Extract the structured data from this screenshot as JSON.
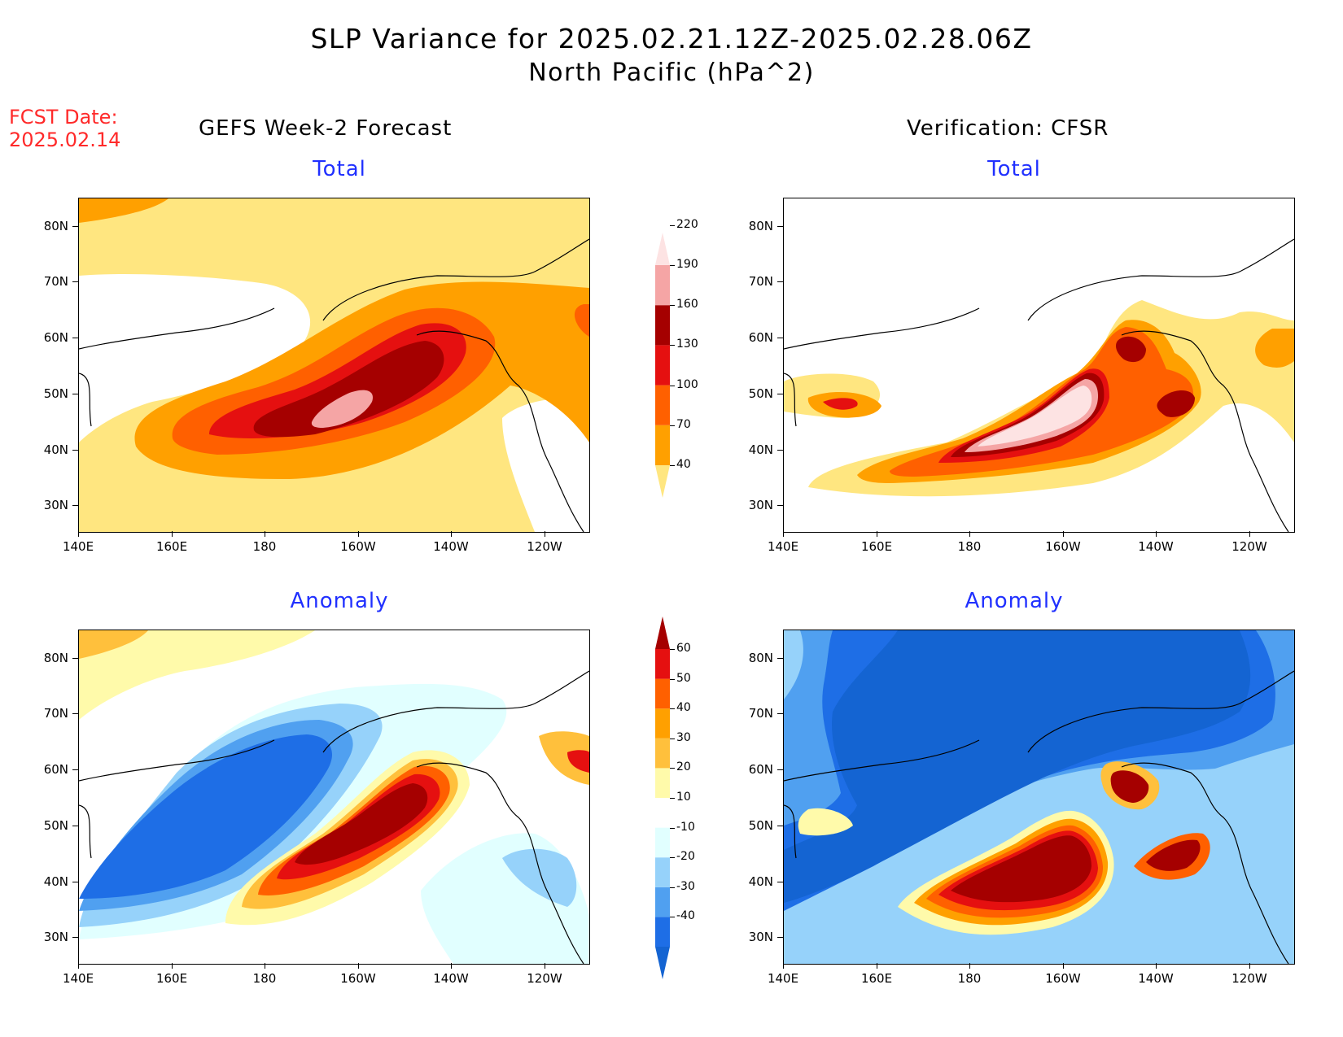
{
  "title": {
    "line1": "SLP Variance for 2025.02.21.12Z-2025.02.28.06Z",
    "line2": "North Pacific (hPa^2)"
  },
  "fcst_date": {
    "label": "FCST Date:",
    "value": "2025.02.14"
  },
  "columns": {
    "left": "GEFS Week-2 Forecast",
    "right": "Verification: CFSR"
  },
  "panel_titles": {
    "top": "Total",
    "bottom": "Anomaly"
  },
  "axes": {
    "lat_labels": [
      "80N",
      "70N",
      "60N",
      "50N",
      "40N",
      "30N"
    ],
    "lon_labels": [
      "140E",
      "160E",
      "180",
      "160W",
      "140W",
      "120W"
    ]
  },
  "colorbars": {
    "total": {
      "levels": [
        "40",
        "70",
        "100",
        "130",
        "160",
        "190",
        "220"
      ],
      "colors": [
        "#ffe680",
        "#ffa000",
        "#ff6000",
        "#e51010",
        "#a50000",
        "#f5a5a5",
        "#fde3e3"
      ]
    },
    "anomaly": {
      "levels": [
        "-40",
        "-30",
        "-20",
        "-10",
        "10",
        "20",
        "30",
        "40",
        "50",
        "60"
      ],
      "colors": [
        "#1464d2",
        "#1e6ee6",
        "#50a0f0",
        "#96d2fa",
        "#e1ffff",
        "#ffffff",
        "#fffaaa",
        "#ffc03c",
        "#ffa000",
        "#ff6000",
        "#e51010",
        "#a50000"
      ]
    }
  },
  "map_colors": {
    "total": {
      "c40": "#ffe680",
      "c70": "#ffa000",
      "c100": "#ff6000",
      "c130": "#e51010",
      "c160": "#a50000",
      "c190": "#f5a5a5",
      "c220": "#fde3e3"
    },
    "anomaly": {
      "n40": "#1464d2",
      "n30": "#1e6ee6",
      "n20": "#50a0f0",
      "n10": "#96d2fa",
      "n5": "#e1ffff",
      "p10": "#fffaaa",
      "p20": "#ffc03c",
      "p30": "#ffa000",
      "p40": "#ff6000",
      "p50": "#e51010",
      "p60": "#a50000"
    }
  }
}
